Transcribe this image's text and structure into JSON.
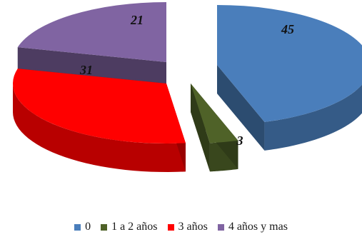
{
  "chart_data": {
    "type": "pie",
    "style": "3d-exploded",
    "categories": [
      "0",
      "1 a 2 años",
      "3 años",
      "4 años y mas"
    ],
    "values": [
      45,
      3,
      31,
      21
    ],
    "colors": [
      "#4a7ebb",
      "#4f6228",
      "#ff0000",
      "#8064a2"
    ],
    "data_labels": [
      "45",
      "3",
      "31",
      "21"
    ],
    "legend_position": "bottom"
  }
}
